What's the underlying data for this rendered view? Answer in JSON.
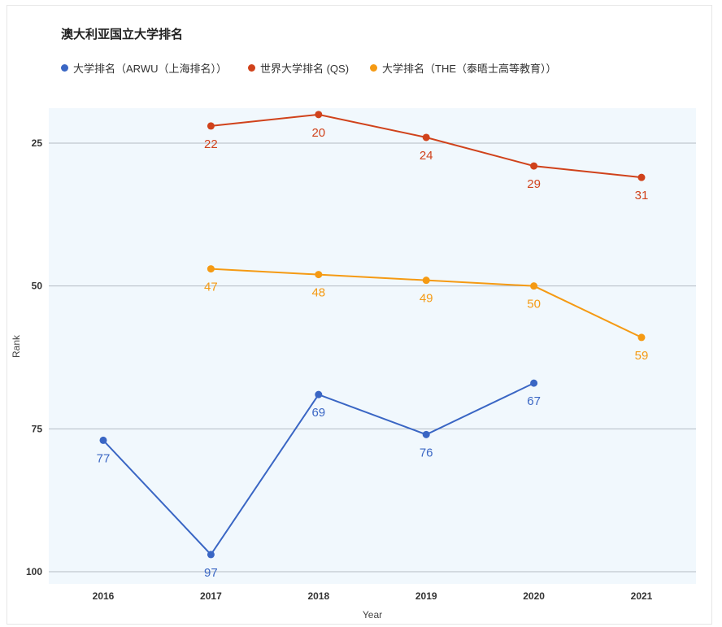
{
  "chart_data": {
    "type": "line",
    "title": "澳大利亚国立大学排名",
    "xlabel": "Year",
    "ylabel": "Rank",
    "x": [
      "2016",
      "2017",
      "2018",
      "2019",
      "2020",
      "2021"
    ],
    "yticks": [
      25,
      50,
      75,
      100
    ],
    "ylim": [
      19,
      102
    ],
    "y_inverted": true,
    "grid": true,
    "legend_position": "top-left",
    "series": [
      {
        "name": "大学排名（ARWU（上海排名））",
        "color": "#3a66c4",
        "values": [
          77,
          97,
          69,
          76,
          67,
          null
        ]
      },
      {
        "name": "世界大学排名 (QS)",
        "color": "#d0421b",
        "values": [
          null,
          22,
          20,
          24,
          29,
          31
        ]
      },
      {
        "name": "大学排名（THE（泰晤士高等教育））",
        "color": "#f59a13",
        "values": [
          null,
          47,
          48,
          49,
          50,
          59
        ]
      }
    ]
  }
}
